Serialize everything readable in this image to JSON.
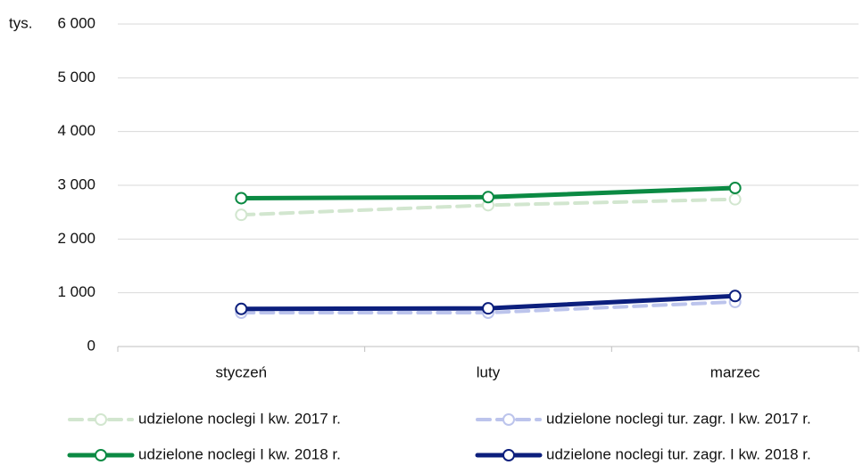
{
  "chart_data": {
    "type": "line",
    "y_unit_label": "tys.",
    "categories": [
      "styczeń",
      "luty",
      "marzec"
    ],
    "series": [
      {
        "name": "udzielone noclegi I kw. 2017 r.",
        "color": "#d2e6cf",
        "dashed": true,
        "values": [
          2450,
          2630,
          2740
        ]
      },
      {
        "name": "udzielone noclegi tur. zagr. I kw. 2017 r.",
        "color": "#bcc4ec",
        "dashed": true,
        "values": [
          630,
          630,
          830
        ]
      },
      {
        "name": "udzielone noclegi I kw. 2018 r.",
        "color": "#0b8a43",
        "dashed": false,
        "values": [
          2760,
          2780,
          2950
        ]
      },
      {
        "name": "udzielone noclegi tur. zagr. I kw. 2018 r.",
        "color": "#0c1f7d",
        "dashed": false,
        "values": [
          700,
          710,
          940
        ]
      }
    ],
    "ylim": [
      0,
      6000
    ],
    "yticks": [
      0,
      {
        "value": 1000,
        "label": "1 000"
      },
      {
        "value": 2000,
        "label": "2 000"
      },
      {
        "value": 3000,
        "label": "3 000"
      },
      {
        "value": 4000,
        "label": "4 000"
      },
      {
        "value": 5000,
        "label": "5 000"
      },
      {
        "value": 6000,
        "label": "6 000"
      }
    ],
    "grid": true,
    "legend": "bottom"
  }
}
